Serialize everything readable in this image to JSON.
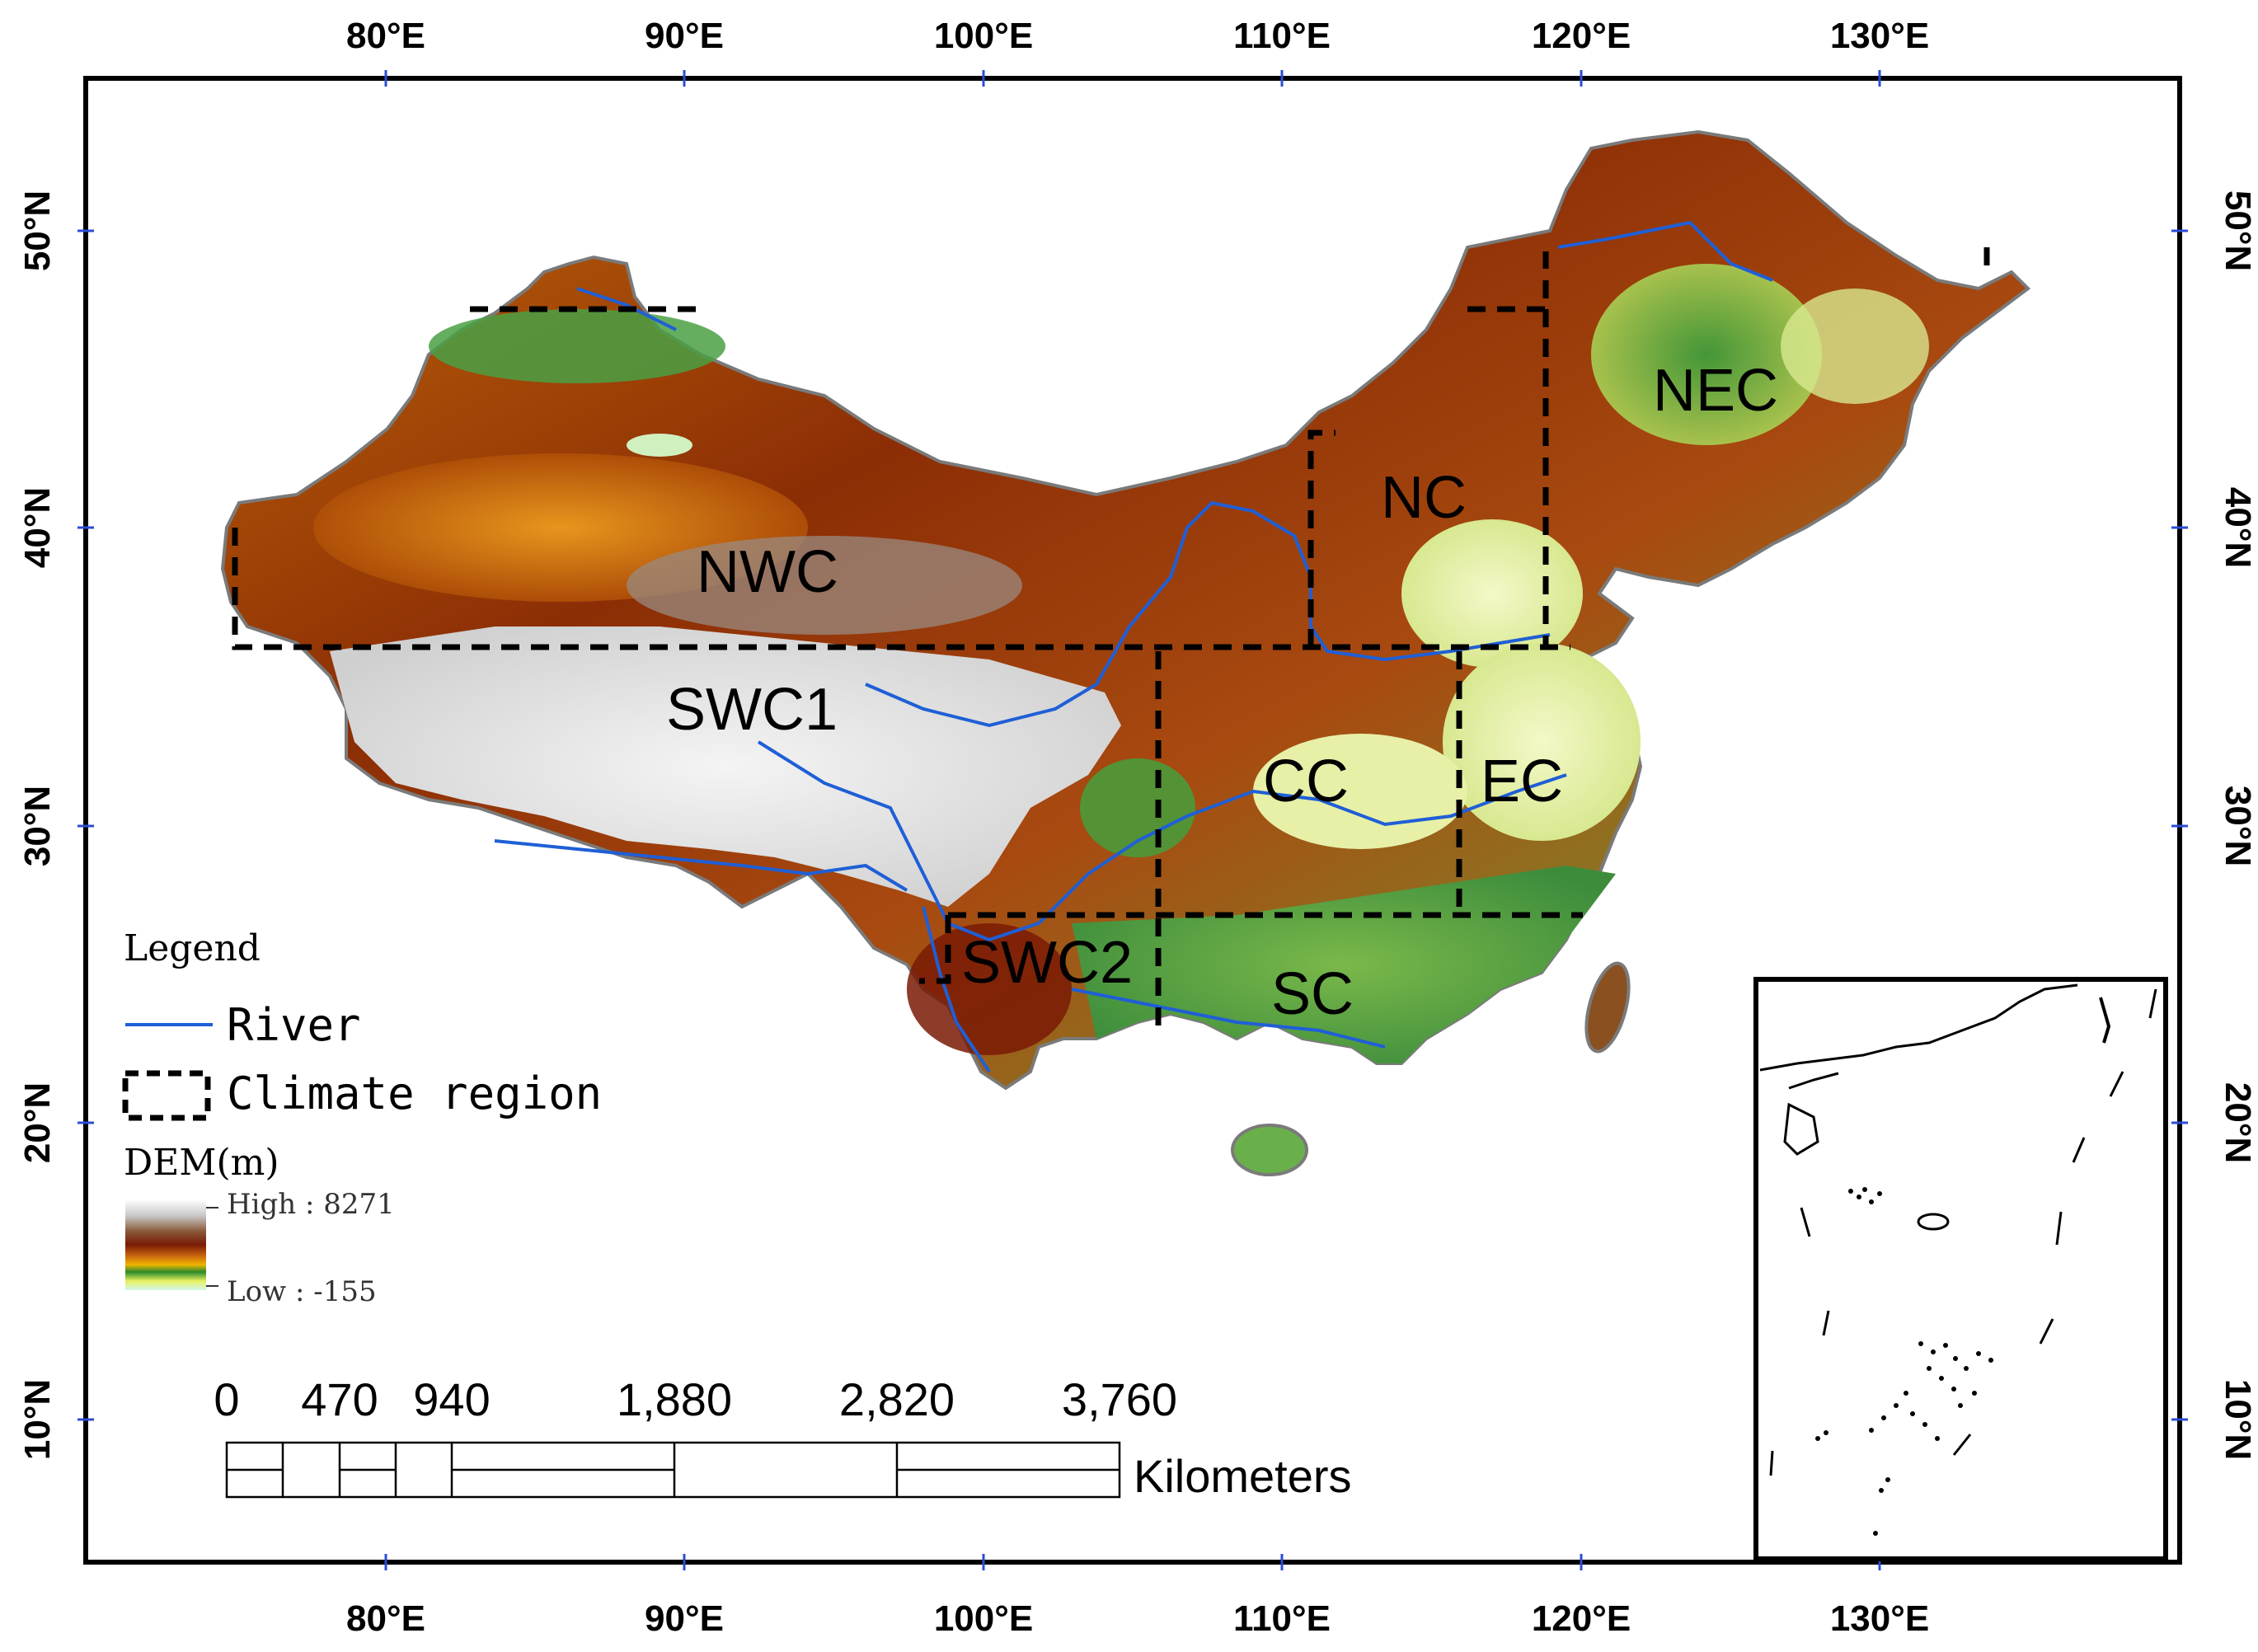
{
  "map": {
    "x_ticks": [
      "80°E",
      "90°E",
      "100°E",
      "110°E",
      "120°E",
      "130°E"
    ],
    "y_ticks": [
      "50°N",
      "40°N",
      "30°N",
      "20°N",
      "10°N"
    ],
    "regions": [
      "NWC",
      "NC",
      "NEC",
      "SWC1",
      "CC",
      "EC",
      "SWC2",
      "SC"
    ]
  },
  "legend": {
    "title": "Legend",
    "river": "River",
    "climate_region": "Climate region",
    "dem_title": "DEM(m)",
    "dem_high": "High : 8271",
    "dem_low": "Low : -155",
    "colors": {
      "river": "#1f5fd6",
      "boundary": "#000000"
    }
  },
  "scale_bar": {
    "labels": [
      "0",
      "470",
      "940",
      "1,880",
      "2,820",
      "3,760"
    ],
    "unit": "Kilometers"
  }
}
